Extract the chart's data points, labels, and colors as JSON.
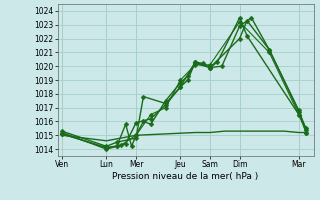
{
  "xlabel": "Pression niveau de la mer( hPa )",
  "ylim": [
    1013.5,
    1024.5
  ],
  "yticks": [
    1014,
    1015,
    1016,
    1017,
    1018,
    1019,
    1020,
    1021,
    1022,
    1023,
    1024
  ],
  "x_labels": [
    "Ven",
    "Lun",
    "Mer",
    "Jeu",
    "Sam",
    "Dim",
    "Mar"
  ],
  "x_positions": [
    0,
    3,
    5,
    8,
    10,
    12,
    16
  ],
  "xlim": [
    -0.3,
    17.0
  ],
  "background_color": "#cce8e8",
  "grid_color": "#a8cec8",
  "line_color": "#1a6b1a",
  "series": [
    {
      "x": [
        0,
        3,
        3.7,
        4.3,
        4.7,
        5,
        5.5,
        6,
        7,
        8,
        8.5,
        9,
        10,
        10.5,
        12,
        12.5,
        16,
        16.5
      ],
      "y": [
        1015.2,
        1014.0,
        1014.2,
        1015.8,
        1014.2,
        1015.0,
        1016.0,
        1015.8,
        1017.5,
        1018.8,
        1019.3,
        1020.2,
        1019.9,
        1020.3,
        1023.5,
        1022.2,
        1016.5,
        1015.5
      ],
      "marker": "D",
      "markersize": 2.5,
      "linewidth": 1.0
    },
    {
      "x": [
        0,
        3,
        3.7,
        4.3,
        5,
        6,
        7,
        8,
        8.5,
        9,
        9.5,
        10,
        10.8,
        12,
        12.8,
        14,
        16,
        16.5
      ],
      "y": [
        1015.1,
        1014.1,
        1014.2,
        1014.4,
        1015.9,
        1016.2,
        1017.2,
        1018.5,
        1019.0,
        1020.3,
        1020.2,
        1019.9,
        1020.0,
        1022.9,
        1023.5,
        1021.2,
        1016.7,
        1015.2
      ],
      "marker": "D",
      "markersize": 2.5,
      "linewidth": 1.0
    },
    {
      "x": [
        0,
        3,
        3.7,
        5,
        5.5,
        7,
        8,
        9,
        10,
        12,
        12.5,
        14,
        16,
        16.5
      ],
      "y": [
        1015.3,
        1014.2,
        1014.5,
        1014.8,
        1017.8,
        1017.3,
        1018.5,
        1020.3,
        1019.9,
        1022.0,
        1023.3,
        1021.2,
        1016.8,
        1015.4
      ],
      "marker": "D",
      "markersize": 2.5,
      "linewidth": 1.0
    },
    {
      "x": [
        0,
        3,
        4,
        5,
        6,
        7,
        8,
        9,
        10,
        12,
        14,
        16,
        16.5
      ],
      "y": [
        1015.1,
        1014.1,
        1014.3,
        1015.0,
        1016.5,
        1017.0,
        1019.0,
        1020.1,
        1020.1,
        1023.2,
        1021.0,
        1016.5,
        1015.2
      ],
      "marker": "D",
      "markersize": 2.5,
      "linewidth": 0.8
    },
    {
      "x": [
        0,
        3,
        5,
        7,
        9,
        10,
        11,
        12,
        13,
        14,
        15,
        16,
        16.5
      ],
      "y": [
        1015.0,
        1014.6,
        1015.0,
        1015.1,
        1015.2,
        1015.2,
        1015.3,
        1015.3,
        1015.3,
        1015.3,
        1015.3,
        1015.2,
        1015.2
      ],
      "marker": null,
      "markersize": 0,
      "linewidth": 1.0
    }
  ]
}
